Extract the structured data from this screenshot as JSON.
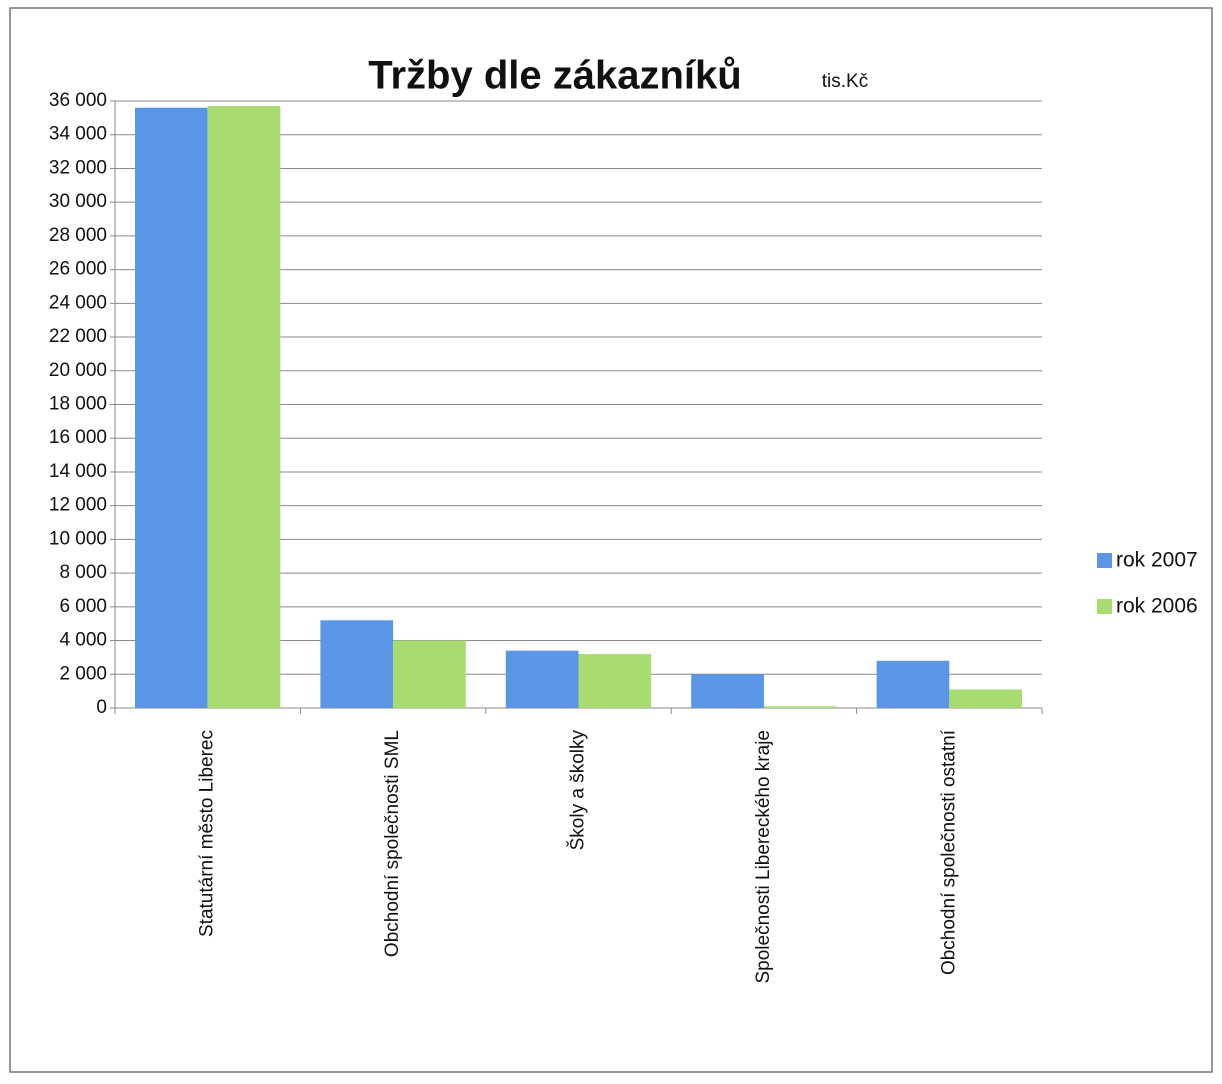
{
  "chart_data": {
    "type": "bar",
    "title": "Tržby dle zákazníků",
    "annotation": "tis.Kč",
    "categories": [
      "Statutární město Liberec",
      "Obchodní společnosti SML",
      "Školy a školky",
      "Společnosti Libereckého kraje",
      "Obchodní společnosti ostatní"
    ],
    "series": [
      {
        "name": "rok 2007",
        "color": "#5b96e6",
        "values": [
          35600,
          5200,
          3400,
          2000,
          2800
        ]
      },
      {
        "name": "rok 2006",
        "color": "#a8dc70",
        "values": [
          35700,
          4000,
          3200,
          100,
          1100
        ]
      }
    ],
    "ylim": [
      0,
      36000
    ],
    "yticks": [
      0,
      {
        "value": 2000,
        "label": "2 000"
      },
      {
        "value": 4000,
        "label": "4 000"
      },
      {
        "value": 6000,
        "label": "6 000"
      },
      {
        "value": 8000,
        "label": "8 000"
      },
      {
        "value": 10000,
        "label": "10 000"
      },
      {
        "value": 12000,
        "label": "12 000"
      },
      {
        "value": 14000,
        "label": "14 000"
      },
      {
        "value": 16000,
        "label": "16 000"
      },
      {
        "value": 18000,
        "label": "18 000"
      },
      {
        "value": 20000,
        "label": "20 000"
      },
      {
        "value": 22000,
        "label": "22 000"
      },
      {
        "value": 24000,
        "label": "24 000"
      },
      {
        "value": 26000,
        "label": "26 000"
      },
      {
        "value": 28000,
        "label": "28 000"
      },
      {
        "value": 30000,
        "label": "30 000"
      },
      {
        "value": 32000,
        "label": "32 000"
      },
      {
        "value": 34000,
        "label": "34 000"
      },
      {
        "value": 36000,
        "label": "36 000"
      }
    ],
    "grid": true,
    "legend": "right"
  }
}
